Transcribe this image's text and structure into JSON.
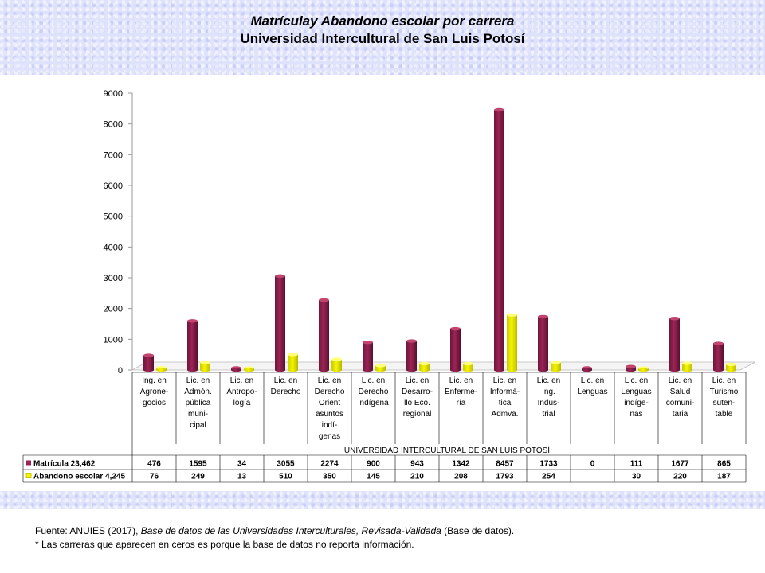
{
  "title": {
    "line1": "Matrículay Abandono escolar por carrera",
    "line2": "Universidad Intercultural de San Luis Potosí"
  },
  "colors": {
    "matricula": "#9b2456",
    "abandono": "#f5f500",
    "band": "#dfe2fb"
  },
  "chart_data": {
    "type": "bar",
    "title": "Matrículay Abandono escolar por carrera",
    "subtitle": "Universidad Intercultural de San Luis Potosí",
    "xlabel": "UNIVERSIDAD INTERCULTURAL DE SAN LUIS POTOSÍ",
    "ylabel": "",
    "ylim": [
      0,
      9000
    ],
    "yticks": [
      0,
      1000,
      2000,
      3000,
      4000,
      5000,
      6000,
      7000,
      8000,
      9000
    ],
    "three_d": true,
    "data_table": true,
    "categories": [
      [
        "Ing. en",
        "Agrone-",
        "gocios"
      ],
      [
        "Lic. en",
        "Admón.",
        "pública",
        "muni-",
        "cipal"
      ],
      [
        "Lic. en",
        "Antropo-",
        "logía"
      ],
      [
        "Lic. en",
        "Derecho"
      ],
      [
        "Lic. en",
        "Derecho",
        "Orient",
        "asuntos",
        "indí-",
        "genas"
      ],
      [
        "Lic. en",
        "Derecho",
        "indígena"
      ],
      [
        "Lic. en",
        "Desarro-",
        "llo Eco.",
        "regional"
      ],
      [
        "Lic. en",
        "Enferme-",
        "ría"
      ],
      [
        "Lic. en",
        "Informá-",
        "tica",
        "Admva."
      ],
      [
        "Lic. en",
        "Ing.",
        "Indus-",
        "trial"
      ],
      [
        "Lic. en",
        "Lenguas"
      ],
      [
        "Lic. en",
        "Lenguas",
        "indíge-",
        "nas"
      ],
      [
        "Lic. en",
        "Salud",
        "comuni-",
        "taria"
      ],
      [
        "Lic. en",
        "Turismo",
        "suten-",
        "table"
      ]
    ],
    "series": [
      {
        "name": "Matrícula 23,462",
        "values": [
          476,
          1595,
          34,
          3055,
          2274,
          900,
          943,
          1342,
          8457,
          1733,
          0,
          111,
          1677,
          865
        ],
        "labels": [
          "476",
          "1595",
          "34",
          "3055",
          "2274",
          "900",
          "943",
          "1342",
          "8457",
          "1733",
          "0",
          "111",
          "1677",
          "865"
        ]
      },
      {
        "name": "Abandono escolar 4,245",
        "values": [
          76,
          249,
          13,
          510,
          350,
          145,
          210,
          208,
          1793,
          254,
          null,
          30,
          220,
          187
        ],
        "labels": [
          "76",
          "249",
          "13",
          "510",
          "350",
          "145",
          "210",
          "208",
          "1793",
          "254",
          "",
          "30",
          "220",
          "187"
        ]
      }
    ]
  },
  "footer": {
    "line1_a": "Fuente: ANUIES (2017), ",
    "line1_b": "Base de datos de las Universidades  Interculturales, Revisada-Validada",
    "line1_c": " (Base de datos).",
    "line2": "* Las carreras que aparecen en ceros es porque la base de datos no reporta información."
  }
}
